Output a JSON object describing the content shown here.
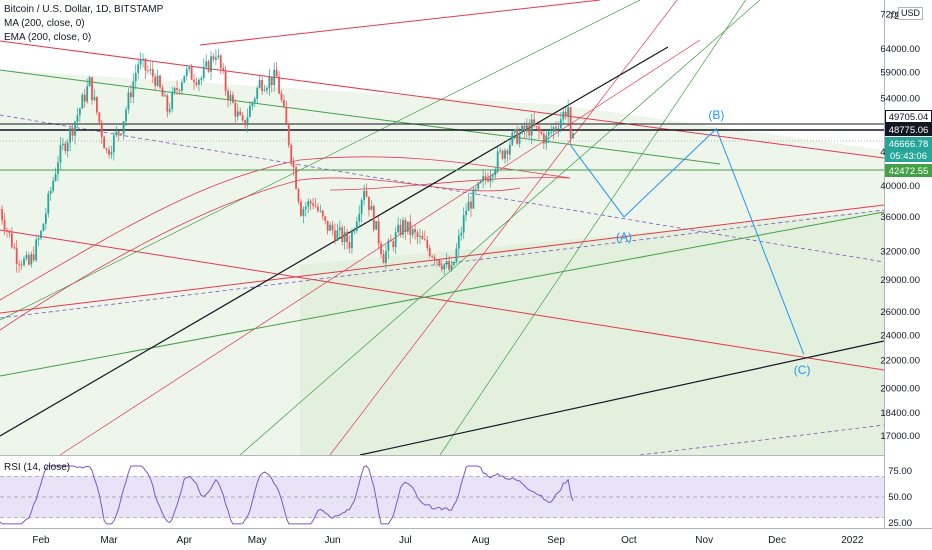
{
  "header": {
    "title": "Bitcoin / U.S. Dollar, 1D, BITSTAMP",
    "ma_label": "MA (200, close, 0)",
    "ema_label": "EMA (200, close, 0)"
  },
  "currency": "USD",
  "price_axis": {
    "ticks": [
      "72000.00",
      "64000.00",
      "59000.00",
      "54000.00",
      "45000.00",
      "40000.00",
      "36000.00",
      "32000.00",
      "29000.00",
      "26000.00",
      "24000.00",
      "22000.00",
      "20000.00",
      "18400.00",
      "17000.00"
    ],
    "top_partial": "72"
  },
  "price_tags": [
    {
      "label": "49705.04",
      "price": 49705.04,
      "bg": "#ffffff",
      "fg": "#131722",
      "border": "#131722"
    },
    {
      "label": "48775.06",
      "price": 48775.06,
      "bg": "#131722",
      "fg": "#ffffff",
      "border": "#131722"
    },
    {
      "label": "46666.78",
      "price": 46666.78,
      "bg": "#26a69a",
      "fg": "#ffffff",
      "border": "#26a69a"
    },
    {
      "label": "05:43:06",
      "price": null,
      "bg": "#26a69a",
      "fg": "#ffffff",
      "border": "#26a69a"
    },
    {
      "label": "42472.55",
      "price": 42472.55,
      "bg": "#43a047",
      "fg": "#ffffff",
      "border": "#43a047"
    }
  ],
  "time_axis": {
    "labels": [
      "Feb",
      "Mar",
      "Apr",
      "May",
      "Jun",
      "Jul",
      "Aug",
      "Sep",
      "Oct",
      "Nov",
      "Dec",
      "2022"
    ]
  },
  "wave_labels": [
    "(A)",
    "(B)",
    "(C)"
  ],
  "rsi": {
    "label": "RSI (14, close)",
    "ticks": [
      "75.00",
      "50.00",
      "25.00"
    ],
    "upper": 70,
    "lower": 30
  },
  "colors": {
    "up": "#26a69a",
    "down": "#ef5350",
    "channel_red": "#e53950",
    "channel_green": "#43a047",
    "trend_black": "#131722",
    "wave_blue": "#2196f3",
    "rsi_line": "#7e57c2",
    "rsi_fill": "#e8e3f7",
    "zone_green": "#eaf3e6"
  },
  "chart_data": {
    "type": "candlestick",
    "title": "Bitcoin / U.S. Dollar, 1D, BITSTAMP",
    "scale": "log",
    "ylim": [
      16000,
      72000
    ],
    "date_range": [
      "2021-01-15",
      "2022-01-20"
    ],
    "price_path": [
      {
        "date": "2021-01-15",
        "price": 37000
      },
      {
        "date": "2021-01-22",
        "price": 31500
      },
      {
        "date": "2021-01-27",
        "price": 30500
      },
      {
        "date": "2021-02-01",
        "price": 34000
      },
      {
        "date": "2021-02-08",
        "price": 44000
      },
      {
        "date": "2021-02-14",
        "price": 49000
      },
      {
        "date": "2021-02-21",
        "price": 57000
      },
      {
        "date": "2021-02-28",
        "price": 45000
      },
      {
        "date": "2021-03-06",
        "price": 49000
      },
      {
        "date": "2021-03-13",
        "price": 61000
      },
      {
        "date": "2021-03-20",
        "price": 58000
      },
      {
        "date": "2021-03-25",
        "price": 52000
      },
      {
        "date": "2021-04-01",
        "price": 59000
      },
      {
        "date": "2021-04-08",
        "price": 58000
      },
      {
        "date": "2021-04-14",
        "price": 63500
      },
      {
        "date": "2021-04-18",
        "price": 56000
      },
      {
        "date": "2021-04-25",
        "price": 49000
      },
      {
        "date": "2021-05-02",
        "price": 57000
      },
      {
        "date": "2021-05-09",
        "price": 58000
      },
      {
        "date": "2021-05-13",
        "price": 49000
      },
      {
        "date": "2021-05-19",
        "price": 37000
      },
      {
        "date": "2021-05-24",
        "price": 38000
      },
      {
        "date": "2021-05-29",
        "price": 35000
      },
      {
        "date": "2021-06-08",
        "price": 33000
      },
      {
        "date": "2021-06-14",
        "price": 40000
      },
      {
        "date": "2021-06-22",
        "price": 31500
      },
      {
        "date": "2021-06-30",
        "price": 35000
      },
      {
        "date": "2021-07-08",
        "price": 33000
      },
      {
        "date": "2021-07-20",
        "price": 29800
      },
      {
        "date": "2021-07-26",
        "price": 37000
      },
      {
        "date": "2021-08-01",
        "price": 40000
      },
      {
        "date": "2021-08-08",
        "price": 44000
      },
      {
        "date": "2021-08-14",
        "price": 47000
      },
      {
        "date": "2021-08-22",
        "price": 49000
      },
      {
        "date": "2021-08-28",
        "price": 47000
      },
      {
        "date": "2021-09-06",
        "price": 52500
      },
      {
        "date": "2021-09-07",
        "price": 46000
      },
      {
        "date": "2021-09-08",
        "price": 46666.78
      }
    ],
    "projection": [
      {
        "label": "(A)",
        "date": "2021-09-29",
        "price": 36000
      },
      {
        "label": "(B)",
        "date": "2021-11-06",
        "price": 48700
      },
      {
        "label": "(C)",
        "date": "2021-12-12",
        "price": 22500
      }
    ],
    "horizontal_levels": [
      49705.04,
      48775.06,
      46666.78,
      42472.55
    ],
    "rsi_range": [
      25,
      80
    ]
  }
}
